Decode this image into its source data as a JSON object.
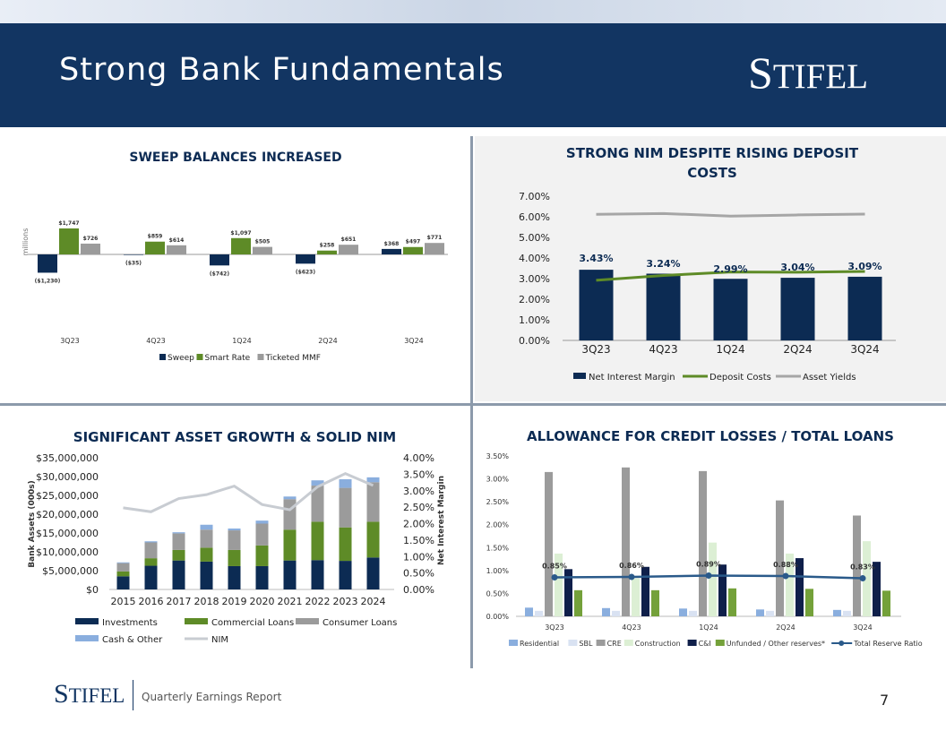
{
  "page": {
    "title": "Strong Bank Fundamentals",
    "logo_text": "Stifel",
    "footer_logo": "Stifel",
    "footer_text": "Quarterly Earnings Report",
    "page_number": "7"
  },
  "colors": {
    "navy": "#0c2b53",
    "green": "#5e8b27",
    "gray": "#9b9b9b",
    "lightblue": "#8aaede",
    "lightgray": "#c8ccd2",
    "palegreen": "#dcefd4",
    "lightgreen": "#74a13a",
    "darkblue": "#0f1f4a"
  },
  "chart_data": [
    {
      "id": "sweep",
      "type": "bar",
      "title": "SWEEP BALANCES INCREASED",
      "ylabel": "millions",
      "categories": [
        "3Q23",
        "4Q23",
        "1Q24",
        "2Q24",
        "3Q24"
      ],
      "series": [
        {
          "name": "Sweep",
          "values": [
            -1230,
            -35,
            -742,
            -623,
            368
          ],
          "labels": [
            "($1,230)",
            "($35)",
            "($742)",
            "($623)",
            "$368"
          ]
        },
        {
          "name": "Smart Rate",
          "values": [
            1747,
            859,
            1097,
            258,
            497
          ],
          "labels": [
            "$1,747",
            "$859",
            "$1,097",
            "$258",
            "$497"
          ]
        },
        {
          "name": "Ticketed MMF",
          "values": [
            726,
            614,
            505,
            651,
            771
          ],
          "labels": [
            "$726",
            "$614",
            "$505",
            "$651",
            "$771"
          ]
        }
      ]
    },
    {
      "id": "nim",
      "type": "bar",
      "title_lines": [
        "STRONG NIM DESPITE RISING DEPOSIT",
        "COSTS"
      ],
      "categories": [
        "3Q23",
        "4Q23",
        "1Q24",
        "2Q24",
        "3Q24"
      ],
      "ylim": [
        0,
        7
      ],
      "yticks": [
        "0.00%",
        "1.00%",
        "2.00%",
        "3.00%",
        "4.00%",
        "5.00%",
        "6.00%",
        "7.00%"
      ],
      "series": [
        {
          "name": "Net Interest Margin",
          "values": [
            3.43,
            3.24,
            2.99,
            3.04,
            3.09
          ],
          "labels": [
            "3.43%",
            "3.24%",
            "2.99%",
            "3.04%",
            "3.09%"
          ]
        },
        {
          "name": "Deposit Costs",
          "values": [
            2.92,
            3.15,
            3.32,
            3.31,
            3.35
          ]
        },
        {
          "name": "Asset Yields",
          "values": [
            6.12,
            6.16,
            6.03,
            6.09,
            6.13
          ]
        }
      ]
    },
    {
      "id": "assets",
      "type": "bar",
      "title": "SIGNIFICANT ASSET GROWTH & SOLID NIM",
      "ylabel": "Bank Assets (000s)",
      "y2label": "Net Interest Margin",
      "categories": [
        "2015",
        "2016",
        "2017",
        "2018",
        "2019",
        "2020",
        "2021",
        "2022",
        "2023",
        "2024"
      ],
      "ylim": [
        0,
        35000000
      ],
      "yticks": [
        "$0",
        "$5,000,000",
        "$10,000,000",
        "$15,000,000",
        "$20,000,000",
        "$25,000,000",
        "$30,000,000",
        "$35,000,000"
      ],
      "y2ticks": [
        "0.00%",
        "0.50%",
        "1.00%",
        "1.50%",
        "2.00%",
        "2.50%",
        "3.00%",
        "3.50%",
        "4.00%"
      ],
      "series": [
        {
          "name": "Investments",
          "values": [
            3500000,
            6300000,
            7700000,
            7400000,
            6200000,
            6200000,
            7700000,
            7800000,
            7600000,
            8500000
          ]
        },
        {
          "name": "Commercial Loans",
          "values": [
            1300000,
            2000000,
            2800000,
            3700000,
            4300000,
            5500000,
            8200000,
            10200000,
            8900000,
            9500000
          ]
        },
        {
          "name": "Consumer Loans",
          "values": [
            2200000,
            4200000,
            4400000,
            4800000,
            5200000,
            5800000,
            8100000,
            9600000,
            10500000,
            10500000
          ]
        },
        {
          "name": "Cash & Other",
          "values": [
            200000,
            300000,
            300000,
            1300000,
            500000,
            800000,
            700000,
            1400000,
            2300000,
            1300000
          ]
        },
        {
          "name": "NIM",
          "values": [
            2.48,
            2.36,
            2.76,
            2.88,
            3.14,
            2.58,
            2.42,
            3.12,
            3.52,
            3.16
          ]
        }
      ]
    },
    {
      "id": "acl",
      "type": "bar",
      "title": "ALLOWANCE FOR CREDIT LOSSES / TOTAL LOANS",
      "categories": [
        "3Q23",
        "4Q23",
        "1Q24",
        "2Q24",
        "3Q24"
      ],
      "ylim": [
        0,
        3.5
      ],
      "yticks": [
        "0.00%",
        "0.50%",
        "1.00%",
        "1.50%",
        "2.00%",
        "2.50%",
        "3.00%",
        "3.50%"
      ],
      "series": [
        {
          "name": "Residential",
          "values": [
            0.19,
            0.18,
            0.17,
            0.15,
            0.14
          ]
        },
        {
          "name": "SBL",
          "values": [
            0.12,
            0.12,
            0.12,
            0.12,
            0.12
          ]
        },
        {
          "name": "CRE",
          "values": [
            3.15,
            3.25,
            3.17,
            2.53,
            2.2
          ]
        },
        {
          "name": "Construction",
          "values": [
            1.37,
            0.83,
            1.61,
            1.37,
            1.64
          ]
        },
        {
          "name": "C&I",
          "values": [
            1.03,
            1.08,
            1.13,
            1.27,
            1.19
          ]
        },
        {
          "name": "Unfunded / Other reserves*",
          "values": [
            0.57,
            0.57,
            0.61,
            0.6,
            0.56
          ]
        },
        {
          "name": "Total Reserve Ratio",
          "values": [
            0.85,
            0.86,
            0.89,
            0.88,
            0.83
          ],
          "labels": [
            "0.85%",
            "0.86%",
            "0.89%",
            "0.88%",
            "0.83%"
          ]
        }
      ]
    }
  ]
}
